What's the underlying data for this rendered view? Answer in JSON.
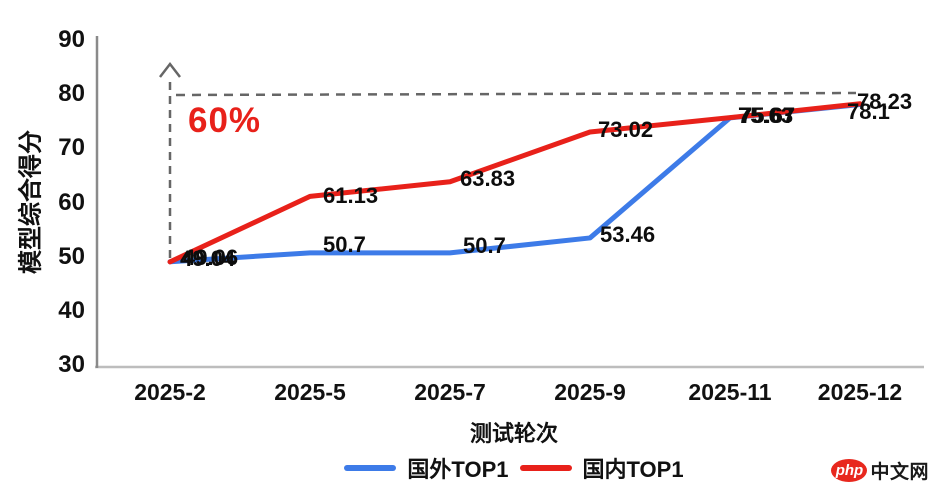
{
  "annotation": {
    "text": "60%",
    "color": "#e8211a"
  },
  "watermark": {
    "badge": "php",
    "text": "中文网"
  },
  "chart_data": {
    "type": "line",
    "title": "",
    "xlabel": "测试轮次",
    "ylabel": "模型综合得分",
    "x_categories": [
      "2025-2",
      "2025-5",
      "2025-7",
      "2025-9",
      "2025-11",
      "2025-12"
    ],
    "y_ticks": [
      90,
      80,
      70,
      60,
      50,
      40,
      30
    ],
    "ylim": [
      30,
      90
    ],
    "grid": false,
    "legend_position": "bottom",
    "series": [
      {
        "name": "国外TOP1",
        "color": "#3d7be8",
        "values": [
          49.06,
          50.7,
          50.7,
          53.46,
          75.63,
          78.1
        ],
        "labels": [
          "49.06",
          "50.7",
          "50.7",
          "53.46",
          "75.63",
          "78.1"
        ]
      },
      {
        "name": "国内TOP1",
        "color": "#e8211a",
        "values": [
          49.04,
          61.13,
          63.83,
          73.02,
          75.67,
          78.23
        ],
        "labels": [
          "49.04",
          "61.13",
          "63.83",
          "73.02",
          "75.67",
          "78.23"
        ]
      }
    ],
    "annotations": {
      "growth_arrow": "dashed vertical arrow from first point up to ~79 with dashed horizontal reference line to last point"
    }
  }
}
